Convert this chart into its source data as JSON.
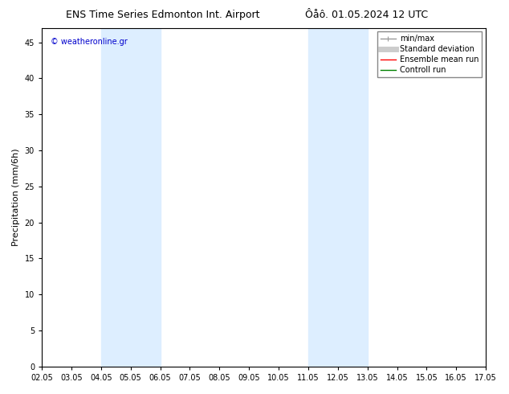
{
  "title_left": "ENS Time Series Edmonton Int. Airport",
  "title_right": "Ôåô. 01.05.2024 12 UTC",
  "ylabel": "Precipitation (mm/6h)",
  "xlabel": "",
  "xlim_labels": [
    "02.05",
    "03.05",
    "04.05",
    "05.05",
    "06.05",
    "07.05",
    "08.05",
    "09.05",
    "10.05",
    "11.05",
    "12.05",
    "13.05",
    "14.05",
    "15.05",
    "16.05",
    "17.05"
  ],
  "ylim": [
    0,
    47
  ],
  "yticks": [
    0,
    5,
    10,
    15,
    20,
    25,
    30,
    35,
    40,
    45
  ],
  "bg_color": "#ffffff",
  "plot_bg_color": "#ffffff",
  "shaded_regions": [
    {
      "xstart": 2,
      "xend": 4,
      "color": "#ddeeff"
    },
    {
      "xstart": 9,
      "xend": 11,
      "color": "#ddeeff"
    }
  ],
  "watermark_text": "© weatheronline.gr",
  "watermark_color": "#0000cc",
  "legend_items": [
    {
      "label": "min/max",
      "color": "#999999",
      "lw": 1.0,
      "style": "line_with_caps"
    },
    {
      "label": "Standard deviation",
      "color": "#cccccc",
      "lw": 5,
      "style": "line"
    },
    {
      "label": "Ensemble mean run",
      "color": "#ff0000",
      "lw": 1.0,
      "style": "line"
    },
    {
      "label": "Controll run",
      "color": "#008000",
      "lw": 1.0,
      "style": "line"
    }
  ],
  "title_fontsize": 9,
  "axis_label_fontsize": 8,
  "tick_fontsize": 7,
  "watermark_fontsize": 7,
  "legend_fontsize": 7
}
